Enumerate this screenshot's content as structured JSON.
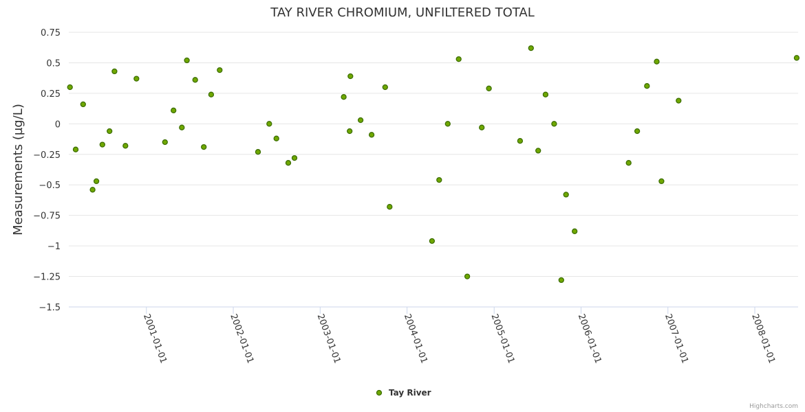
{
  "chart_data": {
    "type": "scatter",
    "title": "TAY RIVER CHROMIUM, UNFILTERED TOTAL",
    "xlabel": "",
    "ylabel": "Measurements (µg/L)",
    "ylim": [
      -1.5,
      0.75
    ],
    "yticks": [
      0.75,
      0.5,
      0.25,
      0,
      -0.25,
      -0.5,
      -0.75,
      -1,
      -1.25,
      -1.5
    ],
    "ytick_labels": [
      "0.75",
      "0.5",
      "0.25",
      "0",
      "−0.25",
      "−0.5",
      "−0.75",
      "−1",
      "−1.25",
      "−1.5"
    ],
    "xlim": [
      "2000-02-10",
      "2008-07-01"
    ],
    "xticks": [
      "2001-01-01",
      "2002-01-01",
      "2003-01-01",
      "2004-01-01",
      "2005-01-01",
      "2006-01-01",
      "2007-01-01",
      "2008-01-01"
    ],
    "grid": true,
    "legend": "bottom-center",
    "series": [
      {
        "name": "Tay River",
        "color": "#70a800",
        "points": [
          {
            "x": "2000-02-15",
            "y": 0.3
          },
          {
            "x": "2000-03-10",
            "y": -0.21
          },
          {
            "x": "2000-04-10",
            "y": 0.16
          },
          {
            "x": "2000-05-20",
            "y": -0.54
          },
          {
            "x": "2000-06-05",
            "y": -0.47
          },
          {
            "x": "2000-06-30",
            "y": -0.17
          },
          {
            "x": "2000-07-30",
            "y": -0.06
          },
          {
            "x": "2000-08-20",
            "y": 0.43
          },
          {
            "x": "2000-10-05",
            "y": -0.18
          },
          {
            "x": "2000-11-20",
            "y": 0.37
          },
          {
            "x": "2001-03-20",
            "y": -0.15
          },
          {
            "x": "2001-04-25",
            "y": 0.11
          },
          {
            "x": "2001-05-30",
            "y": -0.03
          },
          {
            "x": "2001-06-20",
            "y": 0.52
          },
          {
            "x": "2001-07-25",
            "y": 0.36
          },
          {
            "x": "2001-08-30",
            "y": -0.19
          },
          {
            "x": "2001-09-30",
            "y": 0.24
          },
          {
            "x": "2001-11-05",
            "y": 0.44
          },
          {
            "x": "2002-04-15",
            "y": -0.23
          },
          {
            "x": "2002-06-01",
            "y": 0.0
          },
          {
            "x": "2002-07-01",
            "y": -0.12
          },
          {
            "x": "2002-08-20",
            "y": -0.32
          },
          {
            "x": "2002-09-15",
            "y": -0.28
          },
          {
            "x": "2003-04-10",
            "y": 0.22
          },
          {
            "x": "2003-05-05",
            "y": -0.06
          },
          {
            "x": "2003-05-08",
            "y": 0.39
          },
          {
            "x": "2003-06-20",
            "y": 0.03
          },
          {
            "x": "2003-08-05",
            "y": -0.09
          },
          {
            "x": "2003-10-01",
            "y": 0.3
          },
          {
            "x": "2003-10-20",
            "y": -0.68
          },
          {
            "x": "2004-04-15",
            "y": -0.96
          },
          {
            "x": "2004-05-15",
            "y": -0.46
          },
          {
            "x": "2004-06-20",
            "y": 0.0
          },
          {
            "x": "2004-08-05",
            "y": 0.53
          },
          {
            "x": "2004-09-10",
            "y": -1.25
          },
          {
            "x": "2004-11-10",
            "y": -0.03
          },
          {
            "x": "2004-12-10",
            "y": 0.29
          },
          {
            "x": "2005-04-20",
            "y": -0.14
          },
          {
            "x": "2005-06-05",
            "y": 0.62
          },
          {
            "x": "2005-07-05",
            "y": -0.22
          },
          {
            "x": "2005-08-05",
            "y": 0.24
          },
          {
            "x": "2005-09-10",
            "y": 0.0
          },
          {
            "x": "2005-10-10",
            "y": -1.28
          },
          {
            "x": "2005-10-30",
            "y": -0.58
          },
          {
            "x": "2005-12-05",
            "y": -0.88
          },
          {
            "x": "2006-07-20",
            "y": -0.32
          },
          {
            "x": "2006-08-25",
            "y": -0.06
          },
          {
            "x": "2006-10-05",
            "y": 0.31
          },
          {
            "x": "2006-11-15",
            "y": 0.51
          },
          {
            "x": "2006-12-05",
            "y": -0.47
          },
          {
            "x": "2007-02-15",
            "y": 0.19
          },
          {
            "x": "2008-06-25",
            "y": 0.54
          }
        ]
      }
    ],
    "credits": "Highcharts.com"
  }
}
